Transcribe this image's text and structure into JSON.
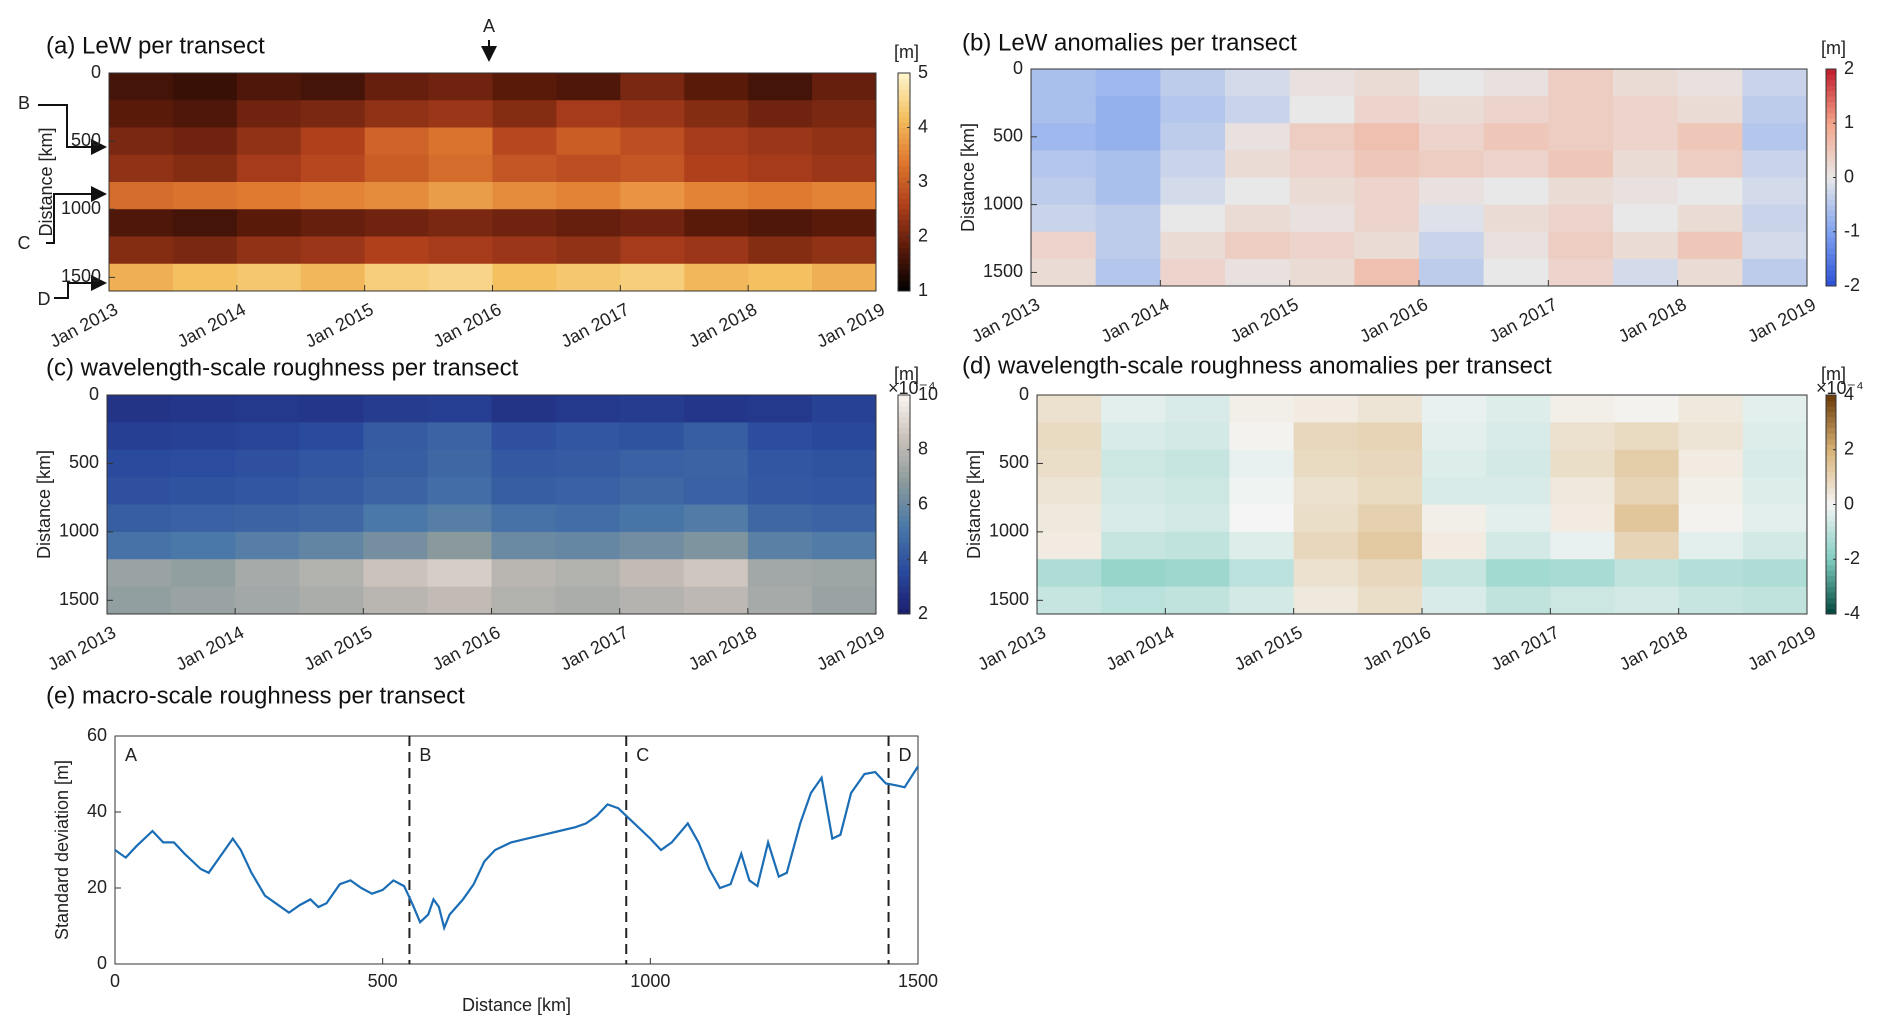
{
  "chart_data": [
    {
      "type": "heatmap",
      "title": "(a) LeW per transect",
      "ylabel": "Distance [km]",
      "clabel": "[m]",
      "xlim": [
        2013,
        2019
      ],
      "ylim": [
        0,
        1600
      ],
      "xticks": [
        {
          "value": 2013,
          "label": "Jan 2013"
        },
        {
          "value": 2014,
          "label": "Jan 2014"
        },
        {
          "value": 2015,
          "label": "Jan 2015"
        },
        {
          "value": 2016,
          "label": "Jan 2016"
        },
        {
          "value": 2017,
          "label": "Jan 2017"
        },
        {
          "value": 2018,
          "label": "Jan 2018"
        },
        {
          "value": 2019,
          "label": "Jan 2019"
        }
      ],
      "yticks": [
        0,
        500,
        1000,
        1500
      ],
      "x_edges": [
        2013,
        2013.5,
        2014,
        2014.5,
        2015,
        2015.5,
        2016,
        2016.5,
        2017,
        2017.5,
        2018,
        2018.5,
        2019
      ],
      "y_edges": [
        0,
        200,
        400,
        600,
        800,
        1000,
        1200,
        1400,
        1600
      ],
      "z": [
        [
          1.6,
          1.5,
          1.7,
          1.6,
          1.9,
          2.0,
          1.8,
          1.7,
          2.1,
          1.8,
          1.6,
          1.9
        ],
        [
          1.8,
          1.7,
          2.0,
          2.1,
          2.3,
          2.4,
          2.2,
          2.5,
          2.4,
          2.2,
          2.0,
          2.1
        ],
        [
          2.1,
          2.0,
          2.3,
          2.6,
          3.1,
          3.3,
          2.7,
          3.0,
          2.8,
          2.5,
          2.4,
          2.3
        ],
        [
          2.3,
          2.2,
          2.5,
          2.7,
          3.0,
          3.2,
          2.9,
          2.8,
          2.9,
          2.6,
          2.5,
          2.4
        ],
        [
          3.2,
          3.3,
          3.4,
          3.5,
          3.6,
          3.8,
          3.6,
          3.5,
          3.7,
          3.5,
          3.4,
          3.5
        ],
        [
          1.7,
          1.6,
          1.8,
          1.9,
          2.0,
          2.1,
          2.0,
          1.9,
          2.0,
          1.8,
          1.7,
          1.8
        ],
        [
          2.2,
          2.1,
          2.3,
          2.4,
          2.6,
          2.5,
          2.4,
          2.3,
          2.5,
          2.4,
          2.2,
          2.3
        ],
        [
          4.0,
          4.2,
          4.3,
          4.1,
          4.4,
          4.5,
          4.2,
          4.3,
          4.4,
          4.1,
          4.2,
          4.0
        ]
      ],
      "clim": [
        1,
        5
      ],
      "cticks": [
        1,
        2,
        3,
        4,
        5
      ],
      "colormap": [
        "#000000",
        "#5a1a0a",
        "#b0401c",
        "#e07a30",
        "#f4c060",
        "#fff6d0"
      ],
      "annotations": [
        "A",
        "B",
        "C",
        "D"
      ]
    },
    {
      "type": "heatmap",
      "title": "(b) LeW anomalies per transect",
      "ylabel": "Distance [km]",
      "clabel": "[m]",
      "xlim": [
        2013,
        2019
      ],
      "ylim": [
        0,
        1600
      ],
      "xticks": [
        {
          "value": 2013,
          "label": "Jan 2013"
        },
        {
          "value": 2014,
          "label": "Jan 2014"
        },
        {
          "value": 2015,
          "label": "Jan 2015"
        },
        {
          "value": 2016,
          "label": "Jan 2016"
        },
        {
          "value": 2017,
          "label": "Jan 2017"
        },
        {
          "value": 2018,
          "label": "Jan 2018"
        },
        {
          "value": 2019,
          "label": "Jan 2019"
        }
      ],
      "yticks": [
        0,
        500,
        1000,
        1500
      ],
      "x_edges": [
        2013,
        2013.5,
        2014,
        2014.5,
        2015,
        2015.5,
        2016,
        2016.5,
        2017,
        2017.5,
        2018,
        2018.5,
        2019
      ],
      "y_edges": [
        0,
        200,
        400,
        600,
        800,
        1000,
        1200,
        1400,
        1600
      ],
      "z": [
        [
          -0.6,
          -0.7,
          -0.4,
          -0.2,
          0.1,
          0.2,
          0.0,
          0.1,
          0.4,
          0.2,
          0.1,
          -0.3
        ],
        [
          -0.6,
          -0.8,
          -0.5,
          -0.3,
          0.0,
          0.3,
          0.2,
          0.3,
          0.4,
          0.3,
          0.2,
          -0.4
        ],
        [
          -0.7,
          -0.8,
          -0.4,
          0.1,
          0.4,
          0.6,
          0.3,
          0.5,
          0.4,
          0.3,
          0.5,
          -0.5
        ],
        [
          -0.5,
          -0.6,
          -0.3,
          0.2,
          0.3,
          0.5,
          0.4,
          0.3,
          0.5,
          0.2,
          0.4,
          -0.3
        ],
        [
          -0.4,
          -0.6,
          -0.2,
          0.0,
          0.2,
          0.3,
          0.1,
          0.0,
          0.2,
          0.1,
          0.0,
          -0.2
        ],
        [
          -0.3,
          -0.4,
          0.0,
          0.2,
          0.1,
          0.3,
          -0.1,
          0.2,
          0.3,
          0.0,
          0.2,
          -0.3
        ],
        [
          0.3,
          -0.4,
          0.2,
          0.4,
          0.3,
          0.2,
          -0.3,
          0.1,
          0.4,
          0.2,
          0.5,
          -0.2
        ],
        [
          0.2,
          -0.5,
          0.3,
          0.1,
          0.2,
          0.6,
          -0.4,
          0.0,
          0.3,
          -0.2,
          0.2,
          -0.4
        ]
      ],
      "clim": [
        -2,
        2
      ],
      "cticks": [
        -2,
        -1,
        0,
        1,
        2
      ],
      "colormap": [
        "#2b4fd6",
        "#7fa3ef",
        "#e8e8e8",
        "#f4a58a",
        "#c01a2b"
      ]
    },
    {
      "type": "heatmap",
      "title": "(c) wavelength-scale roughness per transect",
      "ylabel": "Distance [km]",
      "clabel": "[m]",
      "cscale": "×10⁻⁴",
      "xlim": [
        2013,
        2019
      ],
      "ylim": [
        0,
        1600
      ],
      "xticks": [
        {
          "value": 2013,
          "label": "Jan 2013"
        },
        {
          "value": 2014,
          "label": "Jan 2014"
        },
        {
          "value": 2015,
          "label": "Jan 2015"
        },
        {
          "value": 2016,
          "label": "Jan 2016"
        },
        {
          "value": 2017,
          "label": "Jan 2017"
        },
        {
          "value": 2018,
          "label": "Jan 2018"
        },
        {
          "value": 2019,
          "label": "Jan 2019"
        }
      ],
      "yticks": [
        0,
        500,
        1000,
        1500
      ],
      "x_edges": [
        2013,
        2013.5,
        2014,
        2014.5,
        2015,
        2015.5,
        2016,
        2016.5,
        2017,
        2017.5,
        2018,
        2018.5,
        2019
      ],
      "y_edges": [
        0,
        200,
        400,
        600,
        800,
        1000,
        1200,
        1400,
        1600
      ],
      "z": [
        [
          2.8,
          2.9,
          3.0,
          2.9,
          3.1,
          3.2,
          2.8,
          3.0,
          3.1,
          2.9,
          3.0,
          3.3
        ],
        [
          3.2,
          3.3,
          3.4,
          3.6,
          4.2,
          4.5,
          3.8,
          4.0,
          3.9,
          4.3,
          3.7,
          3.5
        ],
        [
          3.6,
          3.7,
          3.8,
          4.0,
          4.3,
          4.6,
          4.1,
          4.2,
          4.4,
          4.5,
          4.0,
          3.9
        ],
        [
          3.8,
          3.9,
          4.0,
          4.2,
          4.5,
          4.8,
          4.3,
          4.4,
          4.6,
          4.4,
          4.1,
          4.0
        ],
        [
          4.3,
          4.4,
          4.5,
          4.6,
          5.2,
          5.5,
          5.0,
          4.8,
          5.1,
          5.4,
          4.6,
          4.5
        ],
        [
          5.0,
          5.2,
          5.5,
          5.8,
          6.3,
          6.8,
          6.0,
          5.9,
          6.2,
          6.5,
          5.6,
          5.4
        ],
        [
          7.2,
          7.0,
          7.5,
          7.8,
          8.5,
          8.8,
          8.0,
          7.8,
          8.2,
          8.6,
          7.4,
          7.3
        ],
        [
          7.0,
          7.2,
          7.4,
          7.6,
          8.0,
          8.2,
          7.8,
          7.6,
          7.9,
          8.1,
          7.5,
          7.2
        ]
      ],
      "clim": [
        2,
        10
      ],
      "cticks": [
        2,
        4,
        6,
        8,
        10
      ],
      "colormap": [
        "#1c1c6e",
        "#2a4a9e",
        "#4a78a8",
        "#8a9a9c",
        "#c9bfb8",
        "#fbf5f0"
      ]
    },
    {
      "type": "heatmap",
      "title": "(d) wavelength-scale roughness anomalies per transect",
      "ylabel": "Distance [km]",
      "clabel": "[m]",
      "cscale": "×10⁻⁴",
      "xlim": [
        2013,
        2019
      ],
      "ylim": [
        0,
        1600
      ],
      "xticks": [
        {
          "value": 2013,
          "label": "Jan 2013"
        },
        {
          "value": 2014,
          "label": "Jan 2014"
        },
        {
          "value": 2015,
          "label": "Jan 2015"
        },
        {
          "value": 2016,
          "label": "Jan 2016"
        },
        {
          "value": 2017,
          "label": "Jan 2017"
        },
        {
          "value": 2018,
          "label": "Jan 2018"
        },
        {
          "value": 2019,
          "label": "Jan 2019"
        }
      ],
      "yticks": [
        0,
        500,
        1000,
        1500
      ],
      "x_edges": [
        2013,
        2013.5,
        2014,
        2014.5,
        2015,
        2015.5,
        2016,
        2016.5,
        2017,
        2017.5,
        2018,
        2018.5,
        2019
      ],
      "y_edges": [
        0,
        200,
        400,
        600,
        800,
        1000,
        1200,
        1400,
        1600
      ],
      "z": [
        [
          0.6,
          -0.3,
          -0.5,
          0.2,
          0.3,
          0.5,
          -0.2,
          -0.4,
          0.2,
          0.1,
          0.4,
          -0.3
        ],
        [
          0.8,
          -0.5,
          -0.6,
          0.1,
          0.9,
          1.0,
          -0.3,
          -0.5,
          0.6,
          0.8,
          0.5,
          -0.4
        ],
        [
          0.7,
          -0.7,
          -0.8,
          -0.2,
          0.8,
          0.9,
          -0.4,
          -0.6,
          0.7,
          1.2,
          0.3,
          -0.5
        ],
        [
          0.5,
          -0.6,
          -0.7,
          -0.1,
          0.6,
          0.8,
          -0.5,
          -0.5,
          0.4,
          1.0,
          0.2,
          -0.4
        ],
        [
          0.4,
          -0.5,
          -0.6,
          0.0,
          0.7,
          1.1,
          0.2,
          -0.3,
          0.3,
          1.4,
          0.1,
          -0.3
        ],
        [
          0.3,
          -0.8,
          -0.9,
          -0.4,
          0.9,
          1.3,
          0.3,
          -0.6,
          -0.2,
          1.0,
          -0.3,
          -0.6
        ],
        [
          -1.2,
          -1.6,
          -1.5,
          -1.0,
          0.6,
          0.9,
          -0.8,
          -1.4,
          -1.3,
          -0.9,
          -1.1,
          -1.2
        ],
        [
          -0.8,
          -1.0,
          -0.9,
          -0.6,
          0.4,
          0.7,
          -0.5,
          -0.9,
          -0.7,
          -0.6,
          -0.8,
          -0.9
        ]
      ],
      "clim": [
        -4,
        4
      ],
      "cticks": [
        -4,
        -2,
        0,
        2,
        4
      ],
      "colormap": [
        "#00453c",
        "#7fcdc0",
        "#f5f5f5",
        "#d8b276",
        "#6b3a06"
      ]
    },
    {
      "type": "line",
      "title": "(e) macro-scale roughness per transect",
      "xlabel": "Distance [km]",
      "ylabel": "Standard deviation [m]",
      "xlim": [
        0,
        1500
      ],
      "ylim": [
        0,
        60
      ],
      "xticks": [
        0,
        500,
        1000,
        1500
      ],
      "yticks": [
        0,
        20,
        40,
        60
      ],
      "color": "#1b6db5",
      "x": [
        0,
        20,
        40,
        70,
        90,
        110,
        130,
        160,
        175,
        195,
        220,
        235,
        255,
        280,
        300,
        325,
        345,
        365,
        380,
        395,
        420,
        440,
        460,
        480,
        500,
        520,
        540,
        555,
        570,
        585,
        595,
        605,
        615,
        625,
        650,
        670,
        690,
        710,
        740,
        770,
        800,
        830,
        860,
        880,
        900,
        920,
        940,
        970,
        1000,
        1020,
        1040,
        1070,
        1090,
        1110,
        1130,
        1150,
        1170,
        1185,
        1200,
        1220,
        1240,
        1255,
        1280,
        1300,
        1320,
        1340,
        1355,
        1375,
        1400,
        1420,
        1440,
        1460,
        1475,
        1500
      ],
      "values": [
        30,
        28,
        31,
        35,
        32,
        32,
        29,
        25,
        24,
        28,
        33,
        30,
        24,
        18,
        16,
        13.5,
        15.5,
        17,
        15,
        16,
        21,
        22,
        20,
        18.5,
        19.5,
        22,
        20.5,
        16,
        11,
        13,
        17,
        15,
        9.5,
        13,
        17,
        21,
        27,
        30,
        32,
        33,
        34,
        35,
        36,
        37,
        39,
        42,
        41,
        37,
        33,
        30,
        32,
        37,
        32,
        25,
        20,
        21,
        29,
        22,
        20.5,
        32,
        23,
        24,
        37,
        45,
        49,
        33,
        34,
        45,
        50,
        50.5,
        47.5,
        47,
        46.5,
        52
      ],
      "boundaries": [
        550,
        955,
        1445
      ],
      "region_labels": [
        "A",
        "B",
        "C",
        "D"
      ]
    }
  ]
}
